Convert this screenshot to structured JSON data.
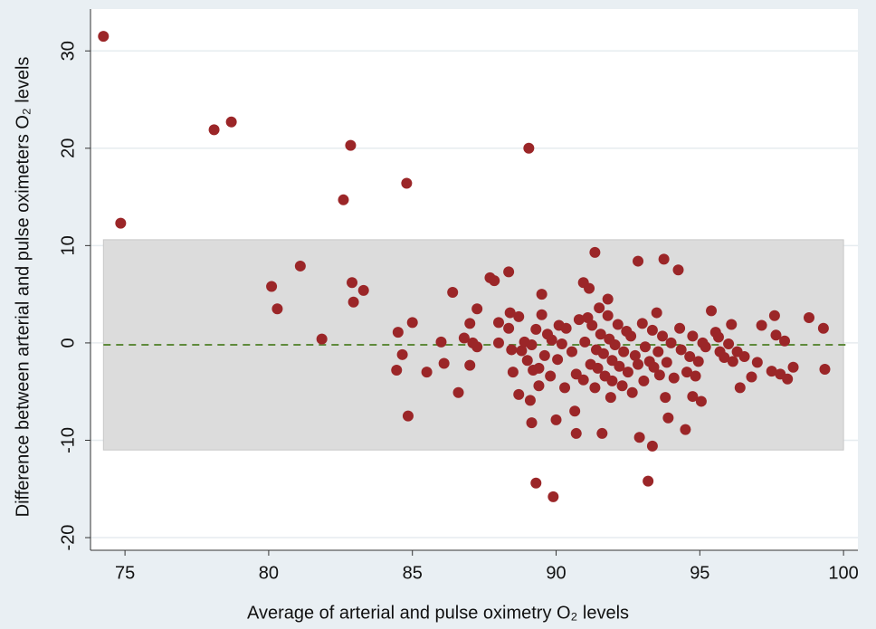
{
  "chart_data": {
    "type": "scatter",
    "x_label": "Average of arterial and pulse oximetry O₂ levels",
    "y_label": "Difference between arterial and pulse oximeters O₂ levels",
    "color": "#9b2628",
    "grid": true,
    "band_color": "#dcdcdc",
    "mean_line_color": "#5f8a3c",
    "mean_difference": -0.2,
    "limits_of_agreement": [
      -11.0,
      10.6
    ],
    "xlim": [
      73.8,
      100.5
    ],
    "ylim": [
      -21.3,
      34.3
    ],
    "xticks": [
      75,
      80,
      85,
      90,
      95,
      100
    ],
    "yticks": [
      -20,
      -10,
      0,
      10,
      20,
      30
    ],
    "x": [
      74.25,
      74.85,
      78.1,
      78.7,
      82.85,
      82.6,
      84.8,
      89.05,
      80.1,
      80.3,
      81.1,
      81.85,
      82.9,
      82.95,
      83.3,
      84.5,
      84.45,
      84.65,
      85.0,
      84.85,
      85.5,
      86.0,
      86.1,
      86.4,
      86.6,
      86.8,
      87.0,
      87.0,
      87.1,
      87.25,
      87.25,
      87.7,
      87.85,
      88.0,
      88.0,
      88.35,
      88.4,
      88.35,
      88.45,
      88.5,
      88.7,
      88.7,
      88.8,
      88.9,
      89.0,
      89.1,
      89.15,
      89.15,
      89.2,
      89.3,
      89.3,
      89.4,
      89.4,
      89.5,
      89.5,
      89.6,
      89.7,
      89.8,
      89.85,
      89.9,
      90.0,
      90.05,
      90.1,
      90.2,
      90.3,
      90.35,
      90.55,
      90.65,
      90.7,
      90.7,
      90.8,
      90.95,
      90.95,
      91.0,
      91.1,
      91.15,
      91.2,
      91.25,
      91.35,
      91.35,
      91.4,
      91.45,
      91.5,
      91.55,
      91.6,
      91.65,
      91.7,
      91.8,
      91.8,
      91.85,
      91.9,
      91.95,
      91.95,
      92.05,
      92.15,
      92.2,
      92.3,
      92.35,
      92.45,
      92.5,
      92.6,
      92.65,
      92.75,
      92.85,
      92.85,
      92.9,
      93.0,
      93.05,
      93.1,
      93.2,
      93.25,
      93.35,
      93.35,
      93.4,
      93.5,
      93.55,
      93.6,
      93.7,
      93.75,
      93.8,
      93.85,
      93.9,
      94.0,
      94.1,
      94.25,
      94.3,
      94.35,
      94.5,
      94.55,
      94.65,
      94.75,
      94.75,
      94.85,
      94.95,
      95.05,
      95.1,
      95.2,
      95.4,
      95.55,
      95.65,
      95.7,
      95.85,
      96.0,
      96.1,
      96.15,
      96.3,
      96.4,
      96.55,
      96.8,
      97.0,
      97.15,
      97.5,
      97.6,
      97.65,
      97.8,
      97.95,
      98.05,
      98.25,
      98.8,
      99.3,
      99.35
    ],
    "values": [
      31.5,
      12.3,
      21.9,
      22.7,
      20.3,
      14.7,
      16.4,
      20.0,
      5.8,
      3.5,
      7.9,
      0.4,
      6.2,
      4.2,
      5.4,
      1.1,
      -2.8,
      -1.2,
      2.1,
      -7.5,
      -3.0,
      0.1,
      -2.1,
      5.2,
      -5.1,
      0.5,
      -2.3,
      2.0,
      0.0,
      3.5,
      -0.4,
      6.7,
      6.4,
      2.1,
      0.0,
      7.3,
      3.1,
      1.5,
      -0.7,
      -3.0,
      2.7,
      -5.3,
      -0.8,
      0.1,
      -1.8,
      -5.9,
      -0.2,
      -8.2,
      -2.8,
      -14.4,
      1.4,
      -2.6,
      -4.4,
      5.0,
      2.9,
      -1.3,
      0.9,
      -3.4,
      0.3,
      -15.8,
      -7.9,
      -1.7,
      1.8,
      -0.1,
      -4.6,
      1.5,
      -0.9,
      -7.0,
      -9.3,
      -3.2,
      2.4,
      6.2,
      -3.8,
      0.1,
      2.6,
      5.6,
      -2.2,
      1.8,
      9.3,
      -4.6,
      -0.7,
      -2.6,
      3.6,
      0.9,
      -9.3,
      -1.1,
      -3.4,
      2.8,
      4.5,
      0.4,
      -5.6,
      -1.8,
      -3.9,
      -0.2,
      1.9,
      -2.4,
      -4.4,
      -0.9,
      1.2,
      -3.0,
      0.7,
      -5.1,
      -1.3,
      8.4,
      -2.2,
      -9.7,
      2.0,
      -3.9,
      -0.4,
      -14.2,
      -1.9,
      1.3,
      -10.6,
      -2.5,
      3.1,
      -0.9,
      -3.3,
      0.7,
      8.6,
      -5.6,
      -2.0,
      -7.7,
      0.0,
      -3.6,
      7.5,
      1.5,
      -0.7,
      -8.9,
      -3.0,
      -1.4,
      0.7,
      -5.5,
      -3.4,
      -1.9,
      -6.0,
      0.0,
      -0.4,
      3.3,
      1.1,
      0.6,
      -0.9,
      -1.5,
      -0.1,
      1.9,
      -1.9,
      -0.9,
      -4.6,
      -1.4,
      -3.5,
      -2.0,
      1.8,
      -2.9,
      2.8,
      0.8,
      -3.2,
      0.2,
      -3.7,
      -2.5,
      2.6,
      1.5,
      -2.7
    ]
  }
}
